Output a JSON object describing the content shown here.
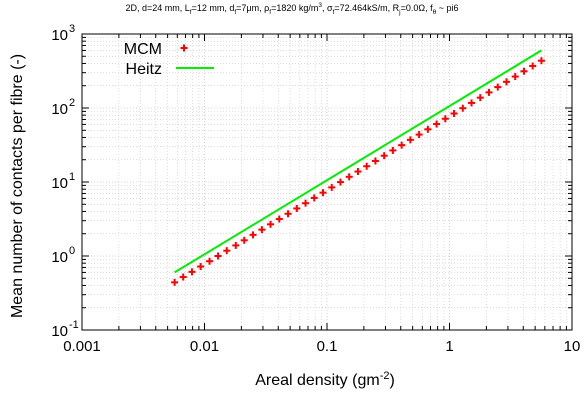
{
  "chart_data": {
    "type": "scatter",
    "title_parts": [
      {
        "t": "2D, d=24 mm, L"
      },
      {
        "sub": "f"
      },
      {
        "t": "=12 mm, d"
      },
      {
        "sub": "f"
      },
      {
        "t": "=7μm, ρ"
      },
      {
        "sub": "f"
      },
      {
        "t": "=1820 kg/m"
      },
      {
        "sup": "3"
      },
      {
        "t": ", σ"
      },
      {
        "sub": "f"
      },
      {
        "t": "=72.464kS/m, R"
      },
      {
        "sub": "j"
      },
      {
        "t": "=0.0Ω, f"
      },
      {
        "sub": "θ"
      },
      {
        "t": " ~ pi6"
      }
    ],
    "xlabel_main": "Areal density (gm",
    "xlabel_sup": "-2",
    "xlabel_end": ")",
    "ylabel": "Mean number of contacts per fibre (-)",
    "x_scale": "log",
    "y_scale": "log",
    "xlim": [
      0.001,
      10
    ],
    "ylim": [
      0.1,
      1000
    ],
    "grid": true,
    "legend_position": "top-left",
    "x_ticks": [
      {
        "value": 0.001,
        "label": "0.001"
      },
      {
        "value": 0.01,
        "label": "0.01"
      },
      {
        "value": 0.1,
        "label": "0.1"
      },
      {
        "value": 1,
        "label": "1"
      },
      {
        "value": 10,
        "label": "10"
      }
    ],
    "y_ticks": [
      {
        "value": 0.1,
        "base": "10",
        "exp": "-1"
      },
      {
        "value": 1,
        "base": "10",
        "exp": "0"
      },
      {
        "value": 10,
        "base": "10",
        "exp": "1"
      },
      {
        "value": 100,
        "base": "10",
        "exp": "2"
      },
      {
        "value": 1000,
        "base": "10",
        "exp": "3"
      }
    ],
    "series": [
      {
        "name": "MCM",
        "style": "plus-markers",
        "color": "#ff0000",
        "x": [
          0.0057,
          0.0067,
          0.0079,
          0.0093,
          0.011,
          0.0129,
          0.0152,
          0.018,
          0.0211,
          0.0249,
          0.0294,
          0.0346,
          0.0408,
          0.0481,
          0.0567,
          0.0668,
          0.0787,
          0.0928,
          0.1093,
          0.1288,
          0.1518,
          0.1789,
          0.2109,
          0.2485,
          0.2929,
          0.3451,
          0.4067,
          0.4793,
          0.5649,
          0.6657,
          0.7845,
          0.9245,
          1.0895,
          1.284,
          1.5131,
          1.7832,
          2.1014,
          2.4765,
          2.9185,
          3.4394,
          4.0532,
          4.7766,
          5.63
        ],
        "y": [
          0.44,
          0.52,
          0.61,
          0.72,
          0.85,
          1.0,
          1.18,
          1.39,
          1.63,
          1.93,
          2.27,
          2.68,
          3.16,
          3.72,
          4.39,
          5.17,
          6.09,
          7.18,
          8.46,
          9.97,
          11.75,
          13.85,
          16.32,
          19.23,
          22.67,
          26.71,
          31.48,
          37.1,
          43.72,
          51.52,
          60.72,
          71.55,
          84.32,
          99.37,
          117.1,
          138.0,
          162.6,
          191.7,
          225.9,
          266.2,
          313.7,
          369.7,
          435.7
        ]
      },
      {
        "name": "Heitz",
        "style": "line",
        "color": "#00ee00",
        "x": [
          0.0057,
          5.63
        ],
        "y": [
          0.6,
          600
        ]
      }
    ]
  }
}
